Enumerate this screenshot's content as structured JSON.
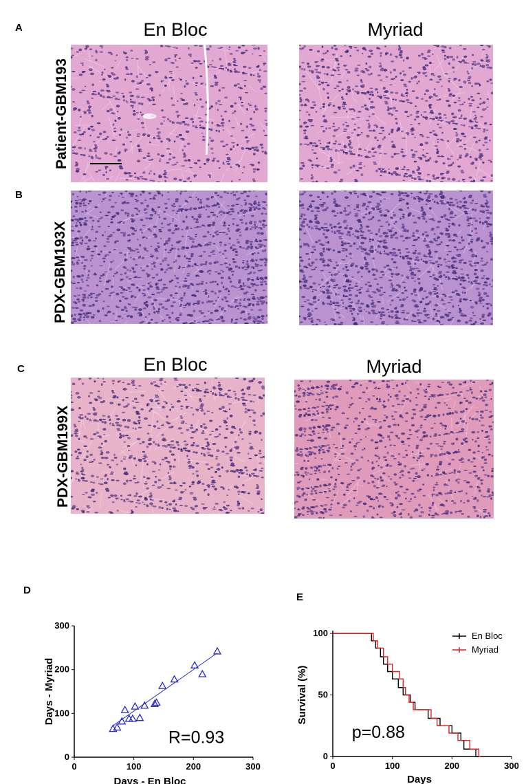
{
  "panels": {
    "a": "A",
    "b": "B",
    "c": "C",
    "d": "D",
    "e": "E"
  },
  "histology": {
    "col_en_bloc": "En Bloc",
    "col_myriad": "Myriad",
    "rows": [
      {
        "label": "Patient-GBM193"
      },
      {
        "label": "PDX-GBM193X"
      },
      {
        "label": "PDX-GBM199X"
      }
    ],
    "stain_colors": {
      "patient_bg": "#e2a8d2",
      "pdx193_bg": "#b992cf",
      "pdx199_en_bloc_bg": "#e8b3c8",
      "pdx199_myriad_bg": "#e09aba",
      "nuclei": "#5a3a8a",
      "nuclei_dark": "#3d2a78"
    }
  },
  "chart_data": [
    {
      "type": "scatter",
      "xlabel": "Days - En Bloc",
      "ylabel": "Days - Myriad",
      "xlim": [
        0,
        300
      ],
      "ylim": [
        0,
        300
      ],
      "xticks": [
        0,
        100,
        200,
        300
      ],
      "yticks": [
        0,
        100,
        200,
        300
      ],
      "points": [
        [
          65,
          65
        ],
        [
          72,
          68
        ],
        [
          80,
          82
        ],
        [
          85,
          108
        ],
        [
          92,
          88
        ],
        [
          98,
          88
        ],
        [
          102,
          116
        ],
        [
          110,
          90
        ],
        [
          118,
          118
        ],
        [
          135,
          122
        ],
        [
          138,
          125
        ],
        [
          148,
          163
        ],
        [
          168,
          178
        ],
        [
          202,
          210
        ],
        [
          215,
          190
        ],
        [
          240,
          242
        ]
      ],
      "fit": [
        [
          65,
          72
        ],
        [
          240,
          238
        ]
      ],
      "annotation": "R=0.93",
      "color": "#2b2bcc"
    },
    {
      "type": "line",
      "xlabel": "Days",
      "ylabel": "Survival (%)",
      "xlim": [
        0,
        300
      ],
      "ylim": [
        0,
        100
      ],
      "xticks": [
        0,
        100,
        200,
        300
      ],
      "yticks": [
        0,
        50,
        100
      ],
      "annotation": "p=0.88",
      "series": [
        {
          "name": "En Bloc",
          "color": "#000000",
          "steps": [
            [
              0,
              100
            ],
            [
              65,
              100
            ],
            [
              65,
              94
            ],
            [
              72,
              94
            ],
            [
              72,
              88
            ],
            [
              80,
              88
            ],
            [
              80,
              81
            ],
            [
              85,
              81
            ],
            [
              85,
              75
            ],
            [
              92,
              75
            ],
            [
              92,
              69
            ],
            [
              100,
              69
            ],
            [
              100,
              63
            ],
            [
              110,
              63
            ],
            [
              110,
              56
            ],
            [
              118,
              56
            ],
            [
              118,
              50
            ],
            [
              130,
              50
            ],
            [
              130,
              44
            ],
            [
              138,
              44
            ],
            [
              138,
              38
            ],
            [
              160,
              38
            ],
            [
              160,
              31
            ],
            [
              180,
              31
            ],
            [
              180,
              25
            ],
            [
              200,
              25
            ],
            [
              200,
              19
            ],
            [
              215,
              19
            ],
            [
              215,
              13
            ],
            [
              220,
              13
            ],
            [
              220,
              6
            ],
            [
              240,
              6
            ],
            [
              240,
              0
            ],
            [
              245,
              0
            ]
          ]
        },
        {
          "name": "Myriad",
          "color": "#e02020",
          "steps": [
            [
              0,
              100
            ],
            [
              68,
              100
            ],
            [
              68,
              94
            ],
            [
              75,
              94
            ],
            [
              75,
              88
            ],
            [
              85,
              88
            ],
            [
              85,
              81
            ],
            [
              92,
              81
            ],
            [
              92,
              75
            ],
            [
              100,
              75
            ],
            [
              100,
              69
            ],
            [
              112,
              69
            ],
            [
              112,
              63
            ],
            [
              118,
              63
            ],
            [
              118,
              56
            ],
            [
              122,
              56
            ],
            [
              122,
              50
            ],
            [
              128,
              50
            ],
            [
              128,
              44
            ],
            [
              135,
              44
            ],
            [
              135,
              38
            ],
            [
              165,
              38
            ],
            [
              165,
              31
            ],
            [
              175,
              31
            ],
            [
              175,
              25
            ],
            [
              195,
              25
            ],
            [
              195,
              19
            ],
            [
              210,
              19
            ],
            [
              210,
              13
            ],
            [
              230,
              13
            ],
            [
              230,
              6
            ],
            [
              245,
              6
            ],
            [
              245,
              0
            ],
            [
              248,
              0
            ]
          ]
        }
      ],
      "legend_position": "top-right"
    }
  ]
}
